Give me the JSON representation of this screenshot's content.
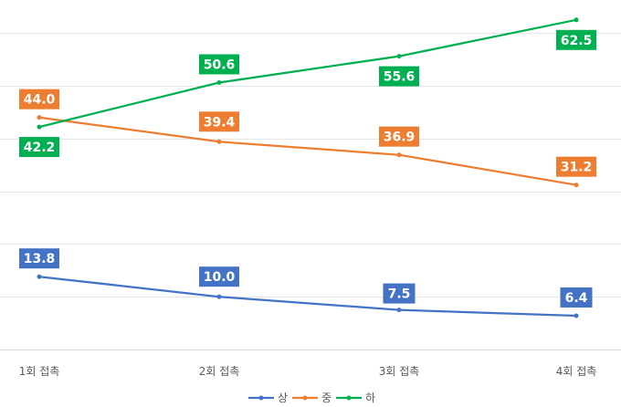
{
  "chart_data": {
    "type": "line",
    "categories": [
      "1회 접촉",
      "2회 접촉",
      "3회 접촉",
      "4회 접촉"
    ],
    "series": [
      {
        "name": "상",
        "values": [
          13.8,
          10.0,
          7.5,
          6.4
        ],
        "color": "#4472C4",
        "labels": [
          "13.8",
          "10.0",
          "7.5",
          "6.4"
        ]
      },
      {
        "name": "중",
        "values": [
          44.0,
          39.4,
          36.9,
          31.2
        ],
        "color": "#ED7D31",
        "labels": [
          "44.0",
          "39.4",
          "36.9",
          "31.2"
        ]
      },
      {
        "name": "하",
        "values": [
          42.2,
          50.6,
          55.6,
          62.5
        ],
        "color": "#00B050",
        "labels": [
          "42.2",
          "50.6",
          "55.6",
          "62.5"
        ]
      }
    ],
    "ylim": [
      0,
      70
    ],
    "gridlines": true,
    "legend": "bottom",
    "data_labels": true
  }
}
